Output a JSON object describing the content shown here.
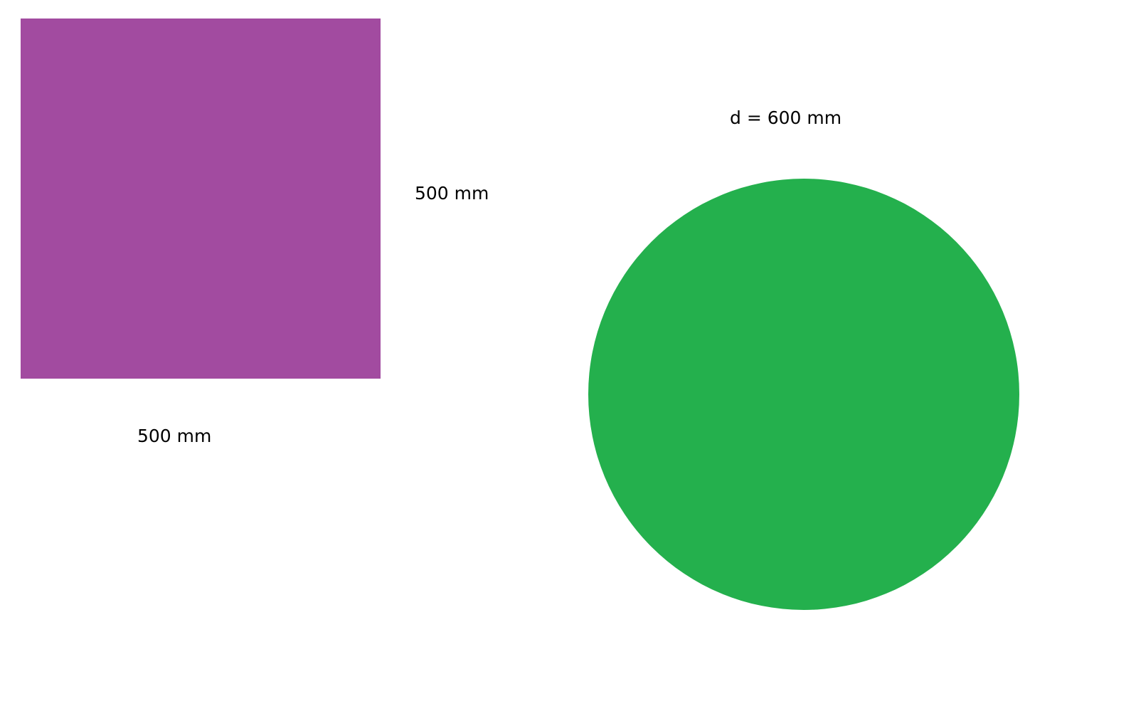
{
  "shapes": {
    "square": {
      "color": "#a24ba0",
      "side_label": "500 mm",
      "bottom_label": "500 mm"
    },
    "circle": {
      "color": "#24b04d",
      "diameter_label": "d = 600 mm"
    }
  }
}
